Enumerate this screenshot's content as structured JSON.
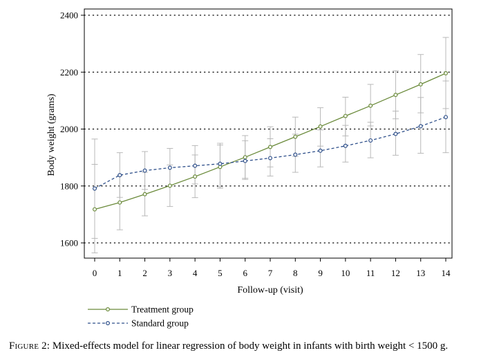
{
  "chart_data": {
    "type": "line",
    "xlabel": "Follow-up (visit)",
    "ylabel": "Body weight (grams)",
    "x": [
      0,
      1,
      2,
      3,
      4,
      5,
      6,
      7,
      8,
      9,
      10,
      11,
      12,
      13,
      14
    ],
    "xlim": [
      0,
      14
    ],
    "ylim": [
      1550,
      2420
    ],
    "yticks": [
      1600,
      1800,
      2000,
      2200,
      2400
    ],
    "xticks": [
      0,
      1,
      2,
      3,
      4,
      5,
      6,
      7,
      8,
      9,
      10,
      11,
      12,
      13,
      14
    ],
    "grid": "horizontal dotted",
    "legend_position": "bottom-left",
    "series": [
      {
        "name": "Treatment group",
        "color": "#6a8a3a",
        "line_style": "solid",
        "marker": "circle",
        "values": [
          1718,
          1742,
          1771,
          1801,
          1833,
          1867,
          1901,
          1937,
          1973,
          2009,
          2046,
          2082,
          2120,
          2157,
          2196
        ],
        "lower": [
          1616,
          1646,
          1695,
          1728,
          1759,
          1792,
          1827,
          1867,
          1904,
          1940,
          1976,
          2011,
          2036,
          2057,
          2072
        ],
        "upper": [
          1876,
          1838,
          1848,
          1874,
          1909,
          1944,
          1977,
          2008,
          2042,
          2075,
          2112,
          2157,
          2205,
          2262,
          2322
        ]
      },
      {
        "name": "Standard group",
        "color": "#2e4f8a",
        "line_style": "dashed",
        "marker": "circle",
        "values": [
          1791,
          1838,
          1854,
          1864,
          1871,
          1878,
          1888,
          1898,
          1910,
          1924,
          1941,
          1960,
          1983,
          2010,
          2042
        ],
        "lower": [
          1565,
          1760,
          1788,
          1799,
          1807,
          1797,
          1823,
          1835,
          1848,
          1867,
          1884,
          1899,
          1908,
          1915,
          1917
        ],
        "upper": [
          1965,
          1917,
          1921,
          1932,
          1942,
          1950,
          1959,
          1966,
          1982,
          1997,
          2013,
          2024,
          2063,
          2111,
          2169
        ]
      }
    ]
  },
  "caption": {
    "label": "Figure 2:",
    "text": " Mixed-effects model for linear regression of body weight in infants with birth weight < 1500 g."
  }
}
